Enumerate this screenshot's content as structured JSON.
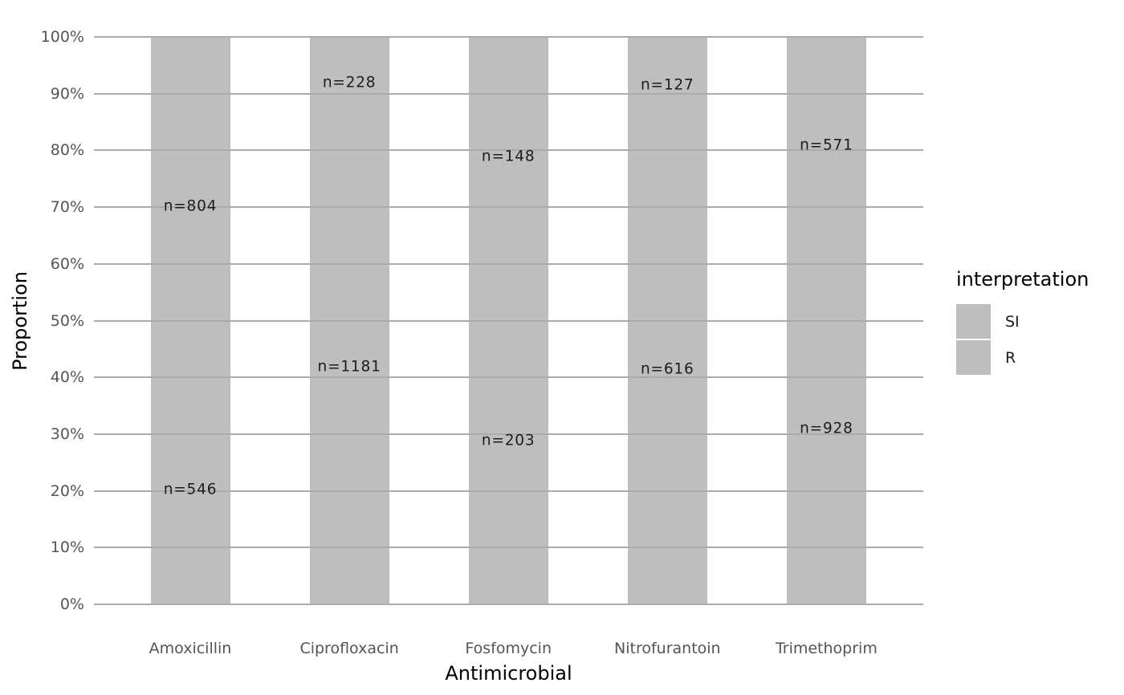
{
  "chart_data": {
    "type": "bar",
    "variant": "stacked-percent",
    "title": "",
    "xlabel": "Antimicrobial",
    "ylabel": "Proportion",
    "categories": [
      "Amoxicillin",
      "Ciprofloxacin",
      "Fosfomycin",
      "Nitrofurantoin",
      "Trimethoprim"
    ],
    "series": [
      {
        "name": "SI",
        "color": "#bebebe",
        "values": [
          804,
          228,
          148,
          127,
          571
        ],
        "labels": [
          "n=804",
          "n=228",
          "n=148",
          "n=127",
          "n=571"
        ]
      },
      {
        "name": "R",
        "color": "#bebebe",
        "values": [
          546,
          1181,
          203,
          616,
          928
        ],
        "labels": [
          "n=546",
          "n=1181",
          "n=203",
          "n=616",
          "n=928"
        ]
      }
    ],
    "ylim": [
      0,
      100
    ],
    "yticks": [
      {
        "value": 0,
        "label": "0%"
      },
      {
        "value": 10,
        "label": "10%"
      },
      {
        "value": 20,
        "label": "20%"
      },
      {
        "value": 30,
        "label": "30%"
      },
      {
        "value": 40,
        "label": "40%"
      },
      {
        "value": 50,
        "label": "50%"
      },
      {
        "value": 60,
        "label": "60%"
      },
      {
        "value": 70,
        "label": "70%"
      },
      {
        "value": 80,
        "label": "80%"
      },
      {
        "value": 90,
        "label": "90%"
      },
      {
        "value": 100,
        "label": "100%"
      }
    ],
    "grid": "horizontal-major, drawn above bars",
    "legend": {
      "title": "interpretation",
      "position": "right",
      "entries": [
        {
          "label": "SI",
          "color": "#bebebe"
        },
        {
          "label": "R",
          "color": "#bebebe"
        }
      ]
    },
    "colors": {
      "background": "#ffffff",
      "bar_fill": "#bebebe",
      "gridline": "#aaaaaa",
      "axis_tick_label": "#555555",
      "axis_title": "#000000",
      "bar_label": "#1c1c1c"
    }
  }
}
